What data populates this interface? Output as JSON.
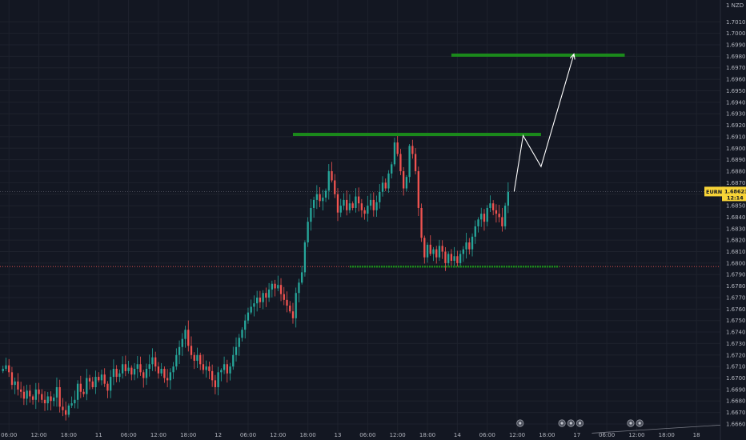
{
  "chart_data": {
    "type": "candlestick",
    "symbol": "EURNZD",
    "currency": "NZD",
    "last_price": "1.68623",
    "countdown": "12:14",
    "y_axis": {
      "min": 1.6653,
      "max": 1.7029,
      "ticks": [
        "1.70100",
        "1.70000",
        "1.69900",
        "1.69800",
        "1.69700",
        "1.69600",
        "1.69500",
        "1.69400",
        "1.69300",
        "1.69200",
        "1.69100",
        "1.69000",
        "1.68900",
        "1.68800",
        "1.68700",
        "1.68600",
        "1.68500",
        "1.68400",
        "1.68300",
        "1.68200",
        "1.68100",
        "1.68000",
        "1.67900",
        "1.67800",
        "1.67700",
        "1.67600",
        "1.67500",
        "1.67400",
        "1.67300",
        "1.67200",
        "1.67100",
        "1.67000",
        "1.66900",
        "1.66800",
        "1.66700",
        "1.66600"
      ],
      "top_label": "1"
    },
    "x_axis": {
      "ticks": [
        {
          "label": "06:00",
          "i": 2
        },
        {
          "label": "12:00",
          "i": 12
        },
        {
          "label": "18:00",
          "i": 22
        },
        {
          "label": "11",
          "i": 32
        },
        {
          "label": "06:00",
          "i": 42
        },
        {
          "label": "12:00",
          "i": 52
        },
        {
          "label": "18:00",
          "i": 62
        },
        {
          "label": "12",
          "i": 72
        },
        {
          "label": "06:00",
          "i": 82
        },
        {
          "label": "12:00",
          "i": 92
        },
        {
          "label": "18:00",
          "i": 102
        },
        {
          "label": "13",
          "i": 112
        },
        {
          "label": "06:00",
          "i": 122
        },
        {
          "label": "12:00",
          "i": 132
        },
        {
          "label": "18:00",
          "i": 142
        },
        {
          "label": "14",
          "i": 152
        },
        {
          "label": "06:00",
          "i": 162
        },
        {
          "label": "12:00",
          "i": 172
        },
        {
          "label": "18:00",
          "i": 182
        },
        {
          "label": "17",
          "i": 192
        },
        {
          "label": "06:00",
          "i": 202
        },
        {
          "label": "12:00",
          "i": 212
        },
        {
          "label": "18:00",
          "i": 222
        },
        {
          "label": "18",
          "i": 232
        }
      ]
    },
    "candles_close": [
      1.6708,
      1.6711,
      1.6705,
      1.6694,
      1.6697,
      1.669,
      1.6688,
      1.6682,
      1.6689,
      1.6684,
      1.6681,
      1.669,
      1.6686,
      1.6681,
      1.6678,
      1.6684,
      1.668,
      1.6683,
      1.6692,
      1.6675,
      1.6672,
      1.6668,
      1.6676,
      1.6678,
      1.6681,
      1.6695,
      1.6688,
      1.6686,
      1.67,
      1.6697,
      1.6692,
      1.6701,
      1.6698,
      1.6703,
      1.6695,
      1.6689,
      1.6701,
      1.6708,
      1.6701,
      1.6704,
      1.6712,
      1.6706,
      1.6709,
      1.6703,
      1.6708,
      1.6712,
      1.6705,
      1.67,
      1.6708,
      1.6712,
      1.6718,
      1.671,
      1.6704,
      1.6708,
      1.67,
      1.6698,
      1.6705,
      1.671,
      1.672,
      1.6727,
      1.6734,
      1.6742,
      1.6728,
      1.672,
      1.6715,
      1.672,
      1.6712,
      1.6707,
      1.671,
      1.6706,
      1.6698,
      1.6692,
      1.6705,
      1.6707,
      1.6712,
      1.6704,
      1.671,
      1.672,
      1.6727,
      1.6735,
      1.6742,
      1.675,
      1.6757,
      1.6762,
      1.6765,
      1.677,
      1.6766,
      1.6774,
      1.677,
      1.6777,
      1.6782,
      1.6778,
      1.6781,
      1.6773,
      1.6768,
      1.6763,
      1.6758,
      1.6752,
      1.6774,
      1.6783,
      1.6792,
      1.6818,
      1.6836,
      1.6848,
      1.6855,
      1.686,
      1.6854,
      1.6857,
      1.6863,
      1.688,
      1.6872,
      1.686,
      1.6844,
      1.685,
      1.6855,
      1.6846,
      1.6852,
      1.6848,
      1.6858,
      1.6852,
      1.6846,
      1.6843,
      1.685,
      1.6855,
      1.6846,
      1.6853,
      1.6862,
      1.687,
      1.6865,
      1.6878,
      1.6886,
      1.6905,
      1.6895,
      1.688,
      1.6865,
      1.6875,
      1.6902,
      1.6895,
      1.688,
      1.6848,
      1.6822,
      1.6805,
      1.6816,
      1.6808,
      1.6812,
      1.6805,
      1.6815,
      1.681,
      1.68,
      1.6808,
      1.6802,
      1.6806,
      1.68,
      1.6808,
      1.6812,
      1.6818,
      1.6812,
      1.6823,
      1.6832,
      1.6838,
      1.6843,
      1.6836,
      1.6848,
      1.6852,
      1.6846,
      1.6843,
      1.684,
      1.6832,
      1.685,
      1.6862
    ],
    "x_range": [
      -1,
      240
    ],
    "levels": {
      "upper_target": {
        "y": 1.6981,
        "i0": 150,
        "i1": 208,
        "color": "#1b8a1b"
      },
      "resistance": {
        "y": 1.6912,
        "i0": 97,
        "i1": 180,
        "color": "#1b8a1b"
      },
      "support": {
        "y": 1.6797,
        "i0": 116,
        "i1": 186,
        "color": "#1b8a1b"
      },
      "red_dotted": {
        "y": 1.6797,
        "color": "#ef5350"
      },
      "current_line": {
        "y": 1.68623,
        "color": "#787b86"
      }
    },
    "projection": [
      {
        "i": 171,
        "y": 1.68623
      },
      {
        "i": 174,
        "y": 1.6911
      },
      {
        "i": 180,
        "y": 1.6884
      },
      {
        "i": 191,
        "y": 1.6982
      }
    ],
    "colors": {
      "up": "#26a69a",
      "down": "#ef5350",
      "background": "#131722",
      "grid": "#1e222d",
      "text": "#b2b5be",
      "price_tag": "#f7d337",
      "projection": "#ffffff"
    }
  }
}
